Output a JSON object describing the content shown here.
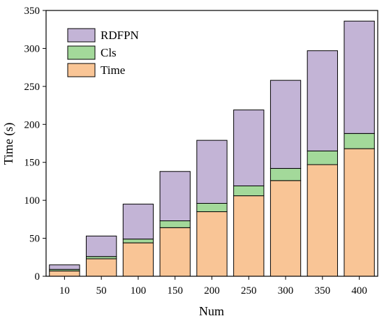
{
  "chart_data": {
    "type": "bar",
    "stacked": true,
    "title": "",
    "xlabel": "Num",
    "ylabel": "Time (s)",
    "ylim": [
      0,
      350
    ],
    "yticks": [
      0,
      50,
      100,
      150,
      200,
      250,
      300,
      350
    ],
    "categories": [
      "10",
      "50",
      "100",
      "150",
      "200",
      "250",
      "300",
      "350",
      "400"
    ],
    "series": [
      {
        "name": "Time",
        "color": "#f9c596",
        "values": [
          7,
          23,
          44,
          64,
          85,
          106,
          126,
          147,
          168
        ]
      },
      {
        "name": "Cls",
        "color": "#a3d99a",
        "values": [
          2,
          3,
          5,
          9,
          11,
          13,
          16,
          18,
          20
        ]
      },
      {
        "name": "RDFPN",
        "color": "#c3b4d6",
        "values": [
          6,
          27,
          46,
          65,
          83,
          100,
          116,
          132,
          148
        ]
      }
    ],
    "legend": {
      "placement": "top-left",
      "order": [
        "RDFPN",
        "Cls",
        "Time"
      ]
    },
    "grid": false
  }
}
